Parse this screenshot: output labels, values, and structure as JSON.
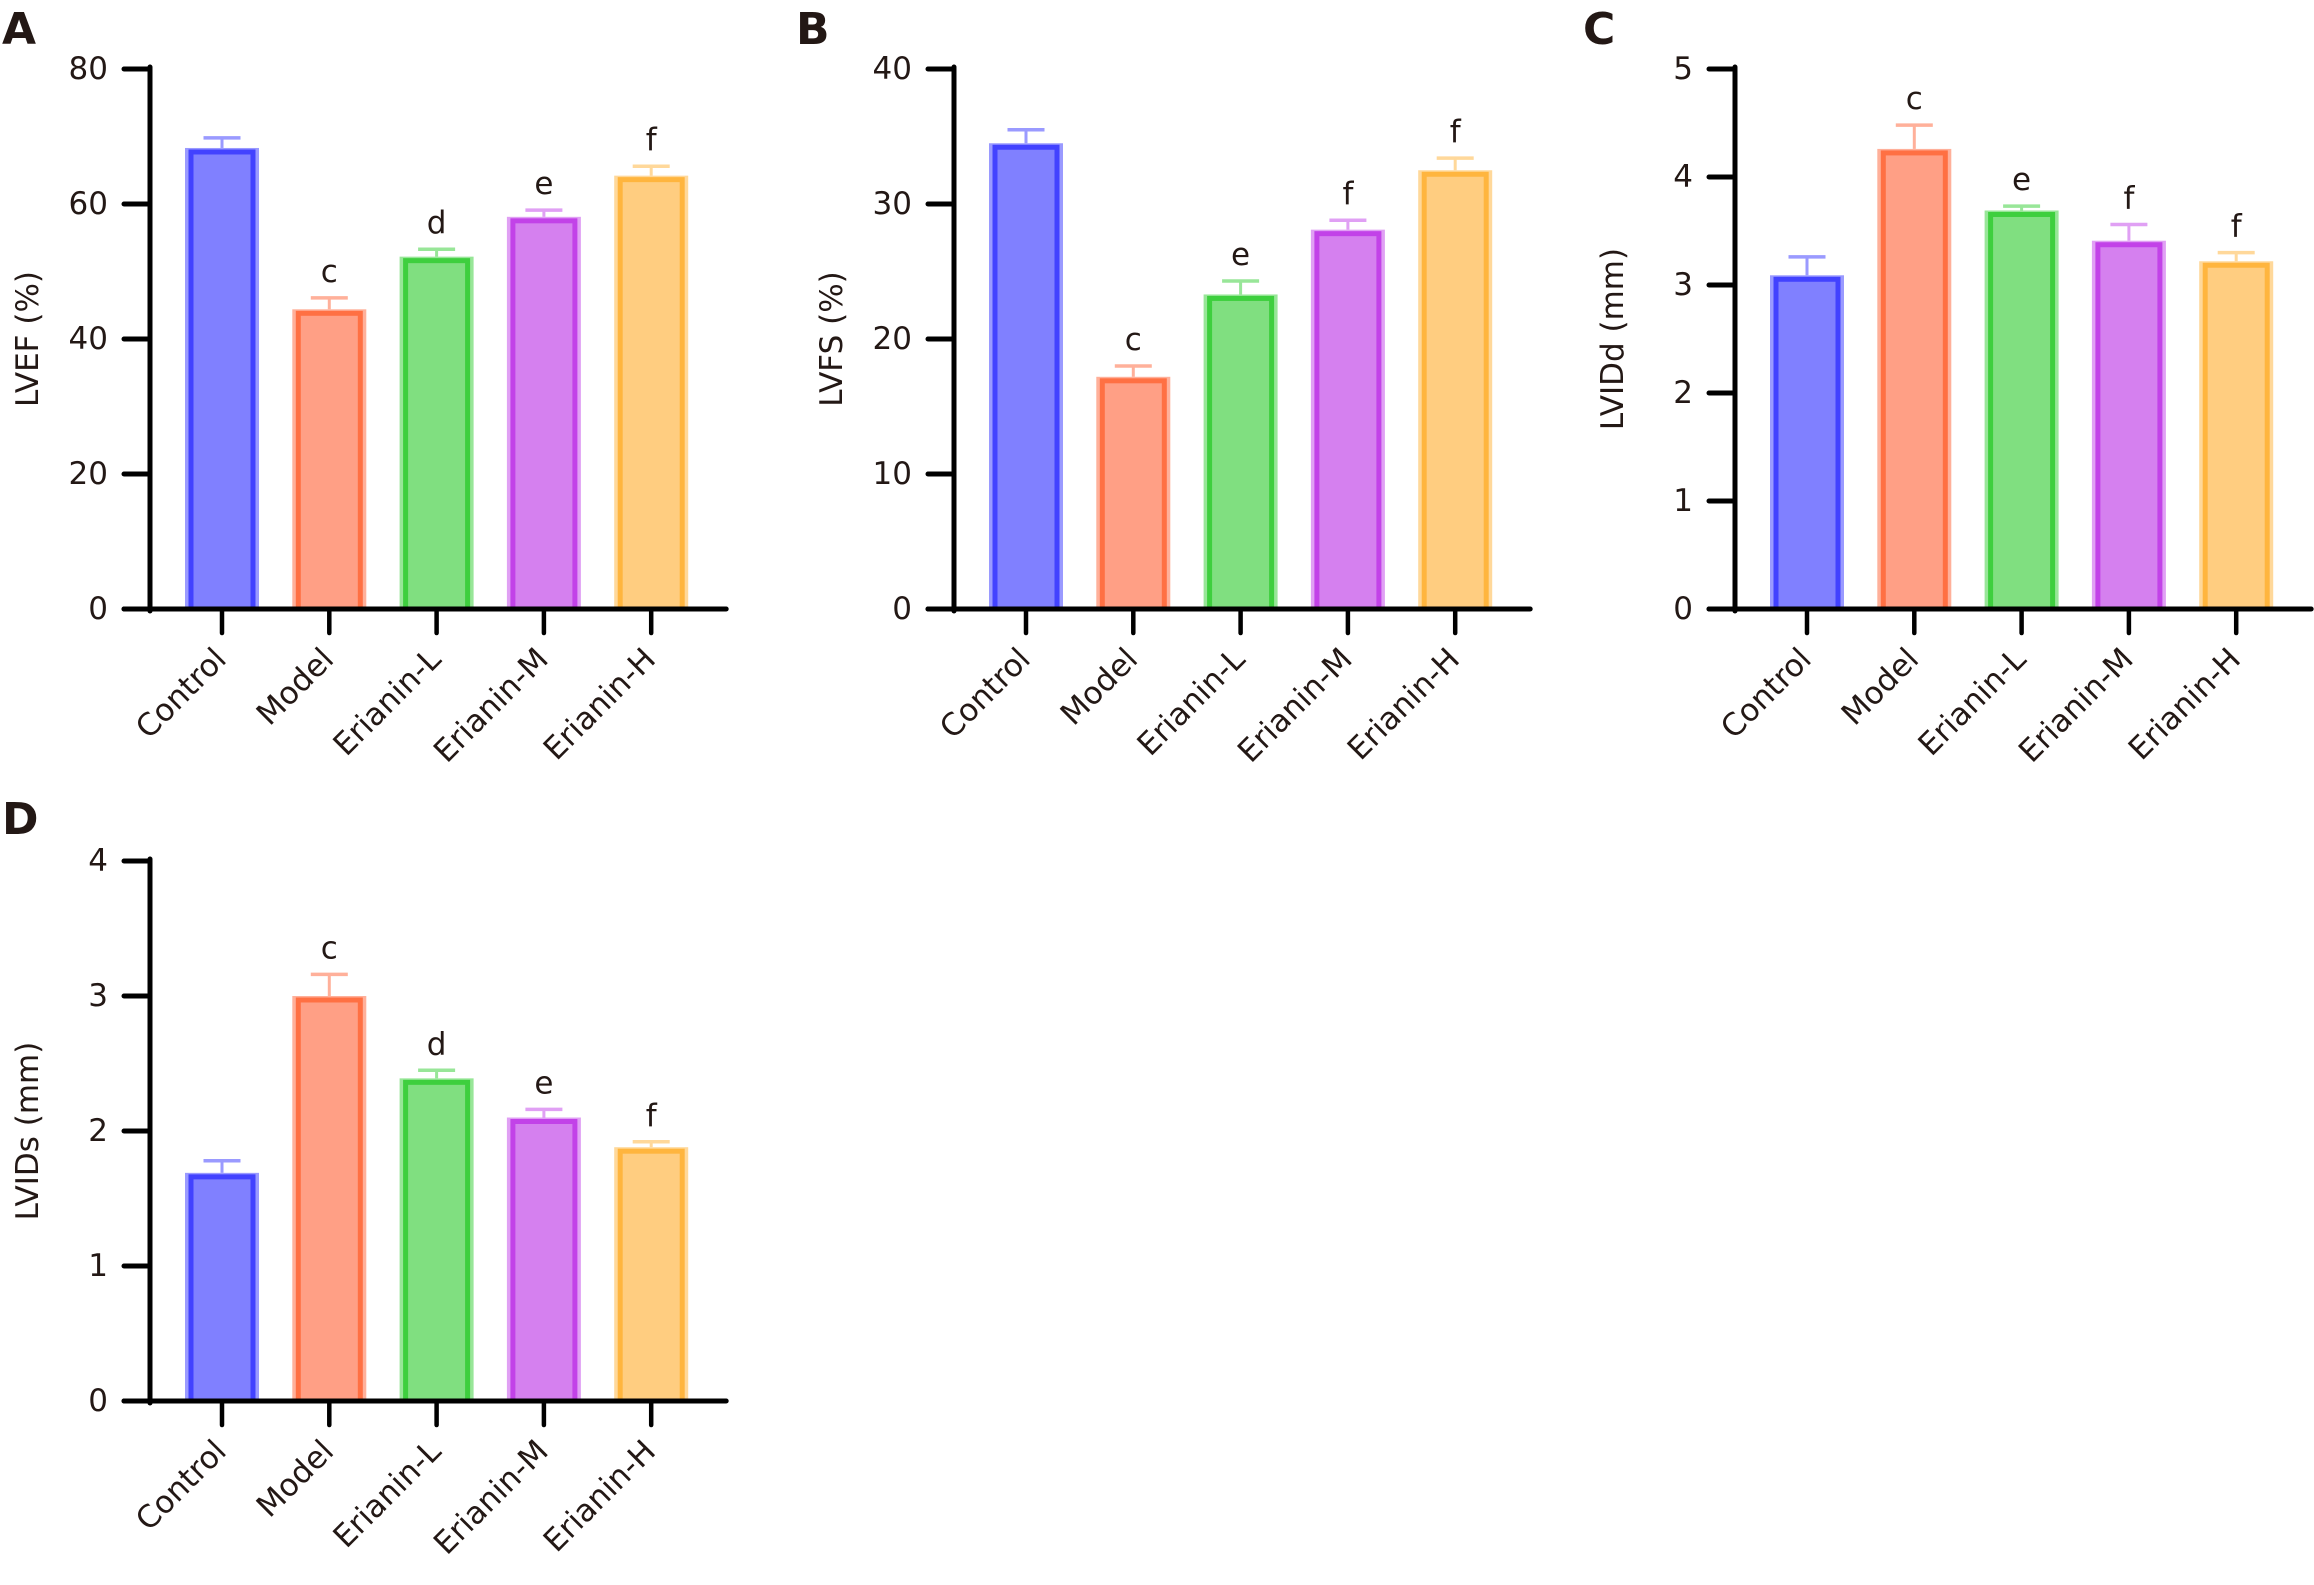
{
  "figure": {
    "categories": [
      "Control",
      "Model",
      "Erianin-L",
      "Erianin-M",
      "Erianin-H"
    ],
    "colors": {
      "Control": {
        "fill": "#8080ff",
        "stroke": "#4242ff",
        "halo": "#9a9aff"
      },
      "Model": {
        "fill": "#ff9f85",
        "stroke": "#ff7043",
        "halo": "#ffb09a"
      },
      "Erianin-L": {
        "fill": "#80df80",
        "stroke": "#3ecf3e",
        "halo": "#98e698"
      },
      "Erianin-M": {
        "fill": "#d580ef",
        "stroke": "#c242e8",
        "halo": "#e0a0f4"
      },
      "Erianin-H": {
        "fill": "#ffcd80",
        "stroke": "#ffb53e",
        "halo": "#ffd89a"
      }
    }
  },
  "chart_data": [
    {
      "panel": "A",
      "type": "bar",
      "title": "",
      "xlabel": "",
      "ylabel": "LVEF (%)",
      "categories": [
        "Control",
        "Model",
        "Erianin-L",
        "Erianin-M",
        "Erianin-H"
      ],
      "values": [
        68.3,
        44.4,
        52.2,
        58.1,
        64.2
      ],
      "error_upper": [
        69.8,
        46.1,
        53.3,
        59.1,
        65.6
      ],
      "significance": [
        "",
        "c",
        "d",
        "e",
        "f"
      ],
      "ylim": [
        0,
        80
      ],
      "yticks": [
        0,
        20,
        40,
        60,
        80
      ],
      "grid": false,
      "legend": "none"
    },
    {
      "panel": "B",
      "type": "bar",
      "title": "",
      "xlabel": "",
      "ylabel": "LVFS (%)",
      "categories": [
        "Control",
        "Model",
        "Erianin-L",
        "Erianin-M",
        "Erianin-H"
      ],
      "values": [
        34.5,
        17.2,
        23.3,
        28.1,
        32.5
      ],
      "error_upper": [
        35.5,
        18.0,
        24.3,
        28.8,
        33.4
      ],
      "significance": [
        "",
        "c",
        "e",
        "f",
        "f"
      ],
      "ylim": [
        0,
        40
      ],
      "yticks": [
        0,
        10,
        20,
        30,
        40
      ],
      "grid": false,
      "legend": "none"
    },
    {
      "panel": "C",
      "type": "bar",
      "title": "",
      "xlabel": "",
      "ylabel": "LVIDd (mm)",
      "categories": [
        "Control",
        "Model",
        "Erianin-L",
        "Erianin-M",
        "Erianin-H"
      ],
      "values": [
        3.09,
        4.26,
        3.69,
        3.41,
        3.22
      ],
      "error_upper": [
        3.26,
        4.48,
        3.73,
        3.56,
        3.3
      ],
      "significance": [
        "",
        "c",
        "e",
        "f",
        "f"
      ],
      "ylim": [
        0,
        5
      ],
      "yticks": [
        0,
        1,
        2,
        3,
        4,
        5
      ],
      "grid": false,
      "legend": "none"
    },
    {
      "panel": "D",
      "type": "bar",
      "title": "",
      "xlabel": "",
      "ylabel": "LVIDs (mm)",
      "categories": [
        "Control",
        "Model",
        "Erianin-L",
        "Erianin-M",
        "Erianin-H"
      ],
      "values": [
        1.69,
        3.0,
        2.39,
        2.1,
        1.88
      ],
      "error_upper": [
        1.78,
        3.16,
        2.45,
        2.16,
        1.92
      ],
      "significance": [
        "",
        "c",
        "d",
        "e",
        "f"
      ],
      "ylim": [
        0,
        4
      ],
      "yticks": [
        0,
        1,
        2,
        3,
        4
      ],
      "grid": false,
      "legend": "none"
    }
  ]
}
